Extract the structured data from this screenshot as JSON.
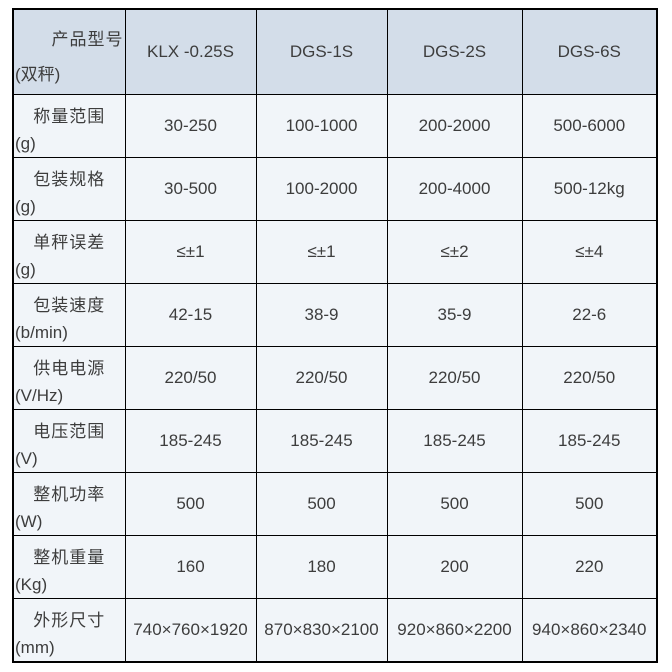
{
  "table": {
    "header": {
      "corner": {
        "title": "产品型号",
        "sub": "(双秤)"
      },
      "models": [
        "KLX -0.25S",
        "DGS-1S",
        "DGS-2S",
        "DGS-6S"
      ]
    },
    "rows": [
      {
        "label": "称量范围",
        "unit": "(g)",
        "values": [
          "30-250",
          "100-1000",
          "200-2000",
          "500-6000"
        ]
      },
      {
        "label": "包装规格",
        "unit": "(g)",
        "values": [
          "30-500",
          "100-2000",
          "200-4000",
          "500-12kg"
        ]
      },
      {
        "label": "单秤误差",
        "unit": "(g)",
        "values": [
          "≤±1",
          "≤±1",
          "≤±2",
          "≤±4"
        ]
      },
      {
        "label": "包装速度",
        "unit": "(b/min)",
        "values": [
          "42-15",
          "38-9",
          "35-9",
          "22-6"
        ]
      },
      {
        "label": "供电电源",
        "unit": "(V/Hz)",
        "values": [
          "220/50",
          "220/50",
          "220/50",
          "220/50"
        ]
      },
      {
        "label": "电压范围",
        "unit": "(V)",
        "values": [
          "185-245",
          "185-245",
          "185-245",
          "185-245"
        ]
      },
      {
        "label": "整机功率",
        "unit": "(W)",
        "values": [
          "500",
          "500",
          "500",
          "500"
        ]
      },
      {
        "label": "整机重量",
        "unit": "(Kg)",
        "values": [
          "160",
          "180",
          "200",
          "220"
        ]
      },
      {
        "label": "外形尺寸",
        "unit": "(mm)",
        "values": [
          "740×760×1920",
          "870×830×2100",
          "920×860×2200",
          "940×860×2340"
        ]
      }
    ],
    "colors": {
      "header_bg": "#d3dde9",
      "body_bg": "#f1f5f9",
      "border": "#000000",
      "text": "#3d3d3d"
    }
  }
}
